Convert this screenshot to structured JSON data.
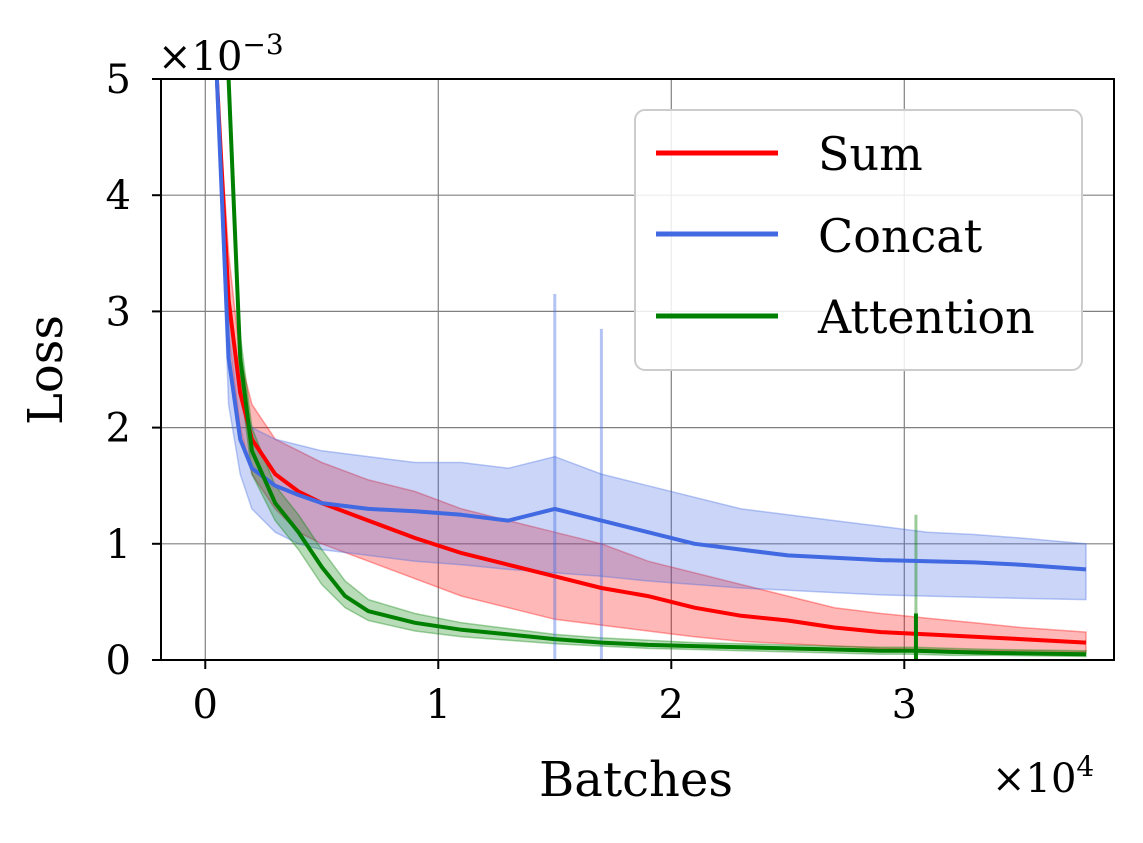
{
  "chart_data": {
    "type": "line",
    "title": "",
    "xlabel": "Batches",
    "ylabel": "Loss",
    "x_multiplier_label": "×10",
    "x_multiplier_exp": "4",
    "y_multiplier_label": "×10",
    "y_multiplier_exp": "−3",
    "xlim": [
      -0.19,
      3.9
    ],
    "ylim": [
      0,
      5
    ],
    "x_units": "×10^4 batches",
    "y_units": "×10^-3 loss",
    "xticks": [
      0,
      1,
      2,
      3
    ],
    "xtick_labels": [
      "0",
      "1",
      "2",
      "3"
    ],
    "yticks": [
      0,
      1,
      2,
      3,
      4,
      5
    ],
    "ytick_labels": [
      "0",
      "1",
      "2",
      "3",
      "4",
      "5"
    ],
    "grid": true,
    "legend_position": "top-right",
    "series": [
      {
        "name": "Sum",
        "color": "#ff0000",
        "x": [
          0.05,
          0.1,
          0.15,
          0.2,
          0.3,
          0.4,
          0.5,
          0.7,
          0.9,
          1.1,
          1.3,
          1.5,
          1.7,
          1.9,
          2.1,
          2.3,
          2.5,
          2.7,
          2.9,
          3.1,
          3.3,
          3.5,
          3.78
        ],
        "y": [
          5.0,
          3.1,
          2.3,
          1.9,
          1.6,
          1.45,
          1.35,
          1.2,
          1.05,
          0.92,
          0.82,
          0.72,
          0.62,
          0.55,
          0.45,
          0.38,
          0.34,
          0.28,
          0.24,
          0.22,
          0.2,
          0.18,
          0.15
        ],
        "upper": [
          5.0,
          3.5,
          2.6,
          2.2,
          1.9,
          1.8,
          1.7,
          1.55,
          1.45,
          1.3,
          1.2,
          1.1,
          1.0,
          0.85,
          0.75,
          0.65,
          0.55,
          0.45,
          0.4,
          0.36,
          0.32,
          0.28,
          0.24
        ],
        "lower": [
          5.0,
          2.8,
          2.0,
          1.6,
          1.3,
          1.1,
          1.0,
          0.85,
          0.7,
          0.55,
          0.45,
          0.35,
          0.3,
          0.25,
          0.2,
          0.16,
          0.14,
          0.12,
          0.1,
          0.09,
          0.08,
          0.08,
          0.07
        ]
      },
      {
        "name": "Concat",
        "color": "#4169e1",
        "x": [
          0.05,
          0.1,
          0.15,
          0.2,
          0.3,
          0.4,
          0.5,
          0.7,
          0.9,
          1.1,
          1.3,
          1.5,
          1.7,
          1.9,
          2.1,
          2.3,
          2.5,
          2.7,
          2.9,
          3.1,
          3.3,
          3.5,
          3.78
        ],
        "y": [
          5.0,
          2.6,
          1.9,
          1.65,
          1.5,
          1.42,
          1.35,
          1.3,
          1.28,
          1.25,
          1.2,
          1.3,
          1.2,
          1.1,
          1.0,
          0.95,
          0.9,
          0.88,
          0.86,
          0.85,
          0.84,
          0.82,
          0.78
        ],
        "upper": [
          5.0,
          3.0,
          2.3,
          2.0,
          1.9,
          1.85,
          1.8,
          1.75,
          1.7,
          1.7,
          1.65,
          1.75,
          1.6,
          1.5,
          1.4,
          1.3,
          1.25,
          1.2,
          1.15,
          1.1,
          1.08,
          1.05,
          1.0
        ],
        "lower": [
          5.0,
          2.2,
          1.6,
          1.3,
          1.1,
          1.0,
          0.95,
          0.9,
          0.85,
          0.82,
          0.78,
          0.75,
          0.72,
          0.68,
          0.65,
          0.62,
          0.6,
          0.58,
          0.56,
          0.55,
          0.54,
          0.53,
          0.52
        ]
      },
      {
        "name": "Attention",
        "color": "#008000",
        "x": [
          0.1,
          0.15,
          0.2,
          0.3,
          0.4,
          0.5,
          0.6,
          0.7,
          0.9,
          1.1,
          1.3,
          1.5,
          1.7,
          1.9,
          2.1,
          2.3,
          2.5,
          2.7,
          2.9,
          3.05,
          3.2,
          3.4,
          3.78
        ],
        "y": [
          5.0,
          2.6,
          1.8,
          1.35,
          1.1,
          0.8,
          0.55,
          0.42,
          0.32,
          0.26,
          0.22,
          0.18,
          0.15,
          0.13,
          0.12,
          0.11,
          0.1,
          0.09,
          0.08,
          0.08,
          0.07,
          0.06,
          0.05
        ],
        "upper": [
          5.0,
          2.8,
          2.0,
          1.5,
          1.25,
          0.95,
          0.68,
          0.52,
          0.4,
          0.32,
          0.27,
          0.22,
          0.19,
          0.17,
          0.15,
          0.14,
          0.13,
          0.12,
          0.11,
          0.11,
          0.1,
          0.09,
          0.08
        ],
        "lower": [
          5.0,
          2.4,
          1.6,
          1.2,
          0.95,
          0.65,
          0.45,
          0.34,
          0.25,
          0.2,
          0.17,
          0.14,
          0.12,
          0.1,
          0.09,
          0.08,
          0.07,
          0.06,
          0.05,
          0.05,
          0.04,
          0.04,
          0.03
        ]
      }
    ],
    "annotations": [
      {
        "series": "Attention",
        "type": "spike",
        "x": 3.05,
        "y_top": 1.25,
        "y_line": 0.4,
        "note": "brief spike in Attention loss band"
      },
      {
        "series": "Concat",
        "type": "spike",
        "x": 1.5,
        "y_top": 3.15,
        "note": "large spike in Concat band"
      },
      {
        "series": "Concat",
        "type": "spike",
        "x": 1.7,
        "y_top": 2.85,
        "note": "spike in Concat band"
      }
    ]
  }
}
